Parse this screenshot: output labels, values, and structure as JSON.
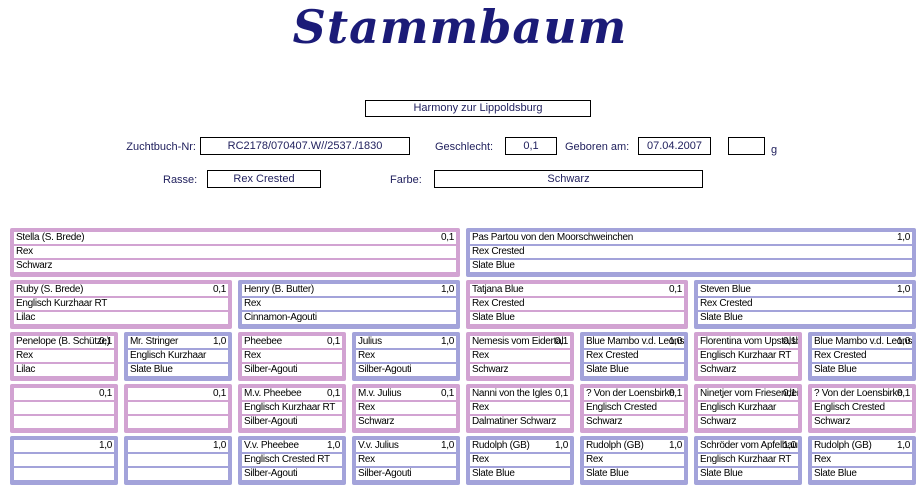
{
  "title": "Stammbaum",
  "animal": {
    "name": "Harmony zur Lippoldsburg",
    "zuchtbuch_label": "Zuchtbuch-Nr:",
    "zuchtbuch_value": "RC2178/070407.W//2537./1830",
    "geschlecht_label": "Geschlecht:",
    "geschlecht_value": "0,1",
    "geboren_label": "Geboren am:",
    "geboren_value": "07.04.2007",
    "weight_value": "",
    "weight_unit": "g",
    "rasse_label": "Rasse:",
    "rasse_value": "Rex Crested",
    "farbe_label": "Farbe:",
    "farbe_value": "Schwarz"
  },
  "colors": {
    "female_box": "#d2a3d2",
    "male_box": "#a3a3da",
    "title_text": "#1b1b78"
  },
  "pedigree": {
    "rows": [
      [
        {
          "name": "Stella (S. Brede)",
          "sex": "0,1",
          "breed": "Rex",
          "color": "Schwarz",
          "gender": "female"
        },
        {
          "name": "Pas Partou von den Moorschweinchen",
          "sex": "1,0",
          "breed": "Rex Crested",
          "color": "Slate Blue",
          "gender": "male"
        }
      ],
      [
        {
          "name": "Ruby (S. Brede)",
          "sex": "0,1",
          "breed": "Englisch Kurzhaar RT",
          "color": "Lilac",
          "gender": "female"
        },
        {
          "name": "Henry (B. Butter)",
          "sex": "1,0",
          "breed": "Rex",
          "color": "Cinnamon-Agouti",
          "gender": "male"
        },
        {
          "name": "Tatjana Blue",
          "sex": "0,1",
          "breed": "Rex Crested",
          "color": "Slate Blue",
          "gender": "female"
        },
        {
          "name": "Steven Blue",
          "sex": "1,0",
          "breed": "Rex Crested",
          "color": "Slate Blue",
          "gender": "male"
        }
      ],
      [
        {
          "name": "Penelope (B. Schütze)",
          "sex": "0,1",
          "breed": "Rex",
          "color": "Lilac",
          "gender": "female"
        },
        {
          "name": "Mr. Stringer",
          "sex": "1,0",
          "breed": "Englisch Kurzhaar",
          "color": "Slate Blue",
          "gender": "male"
        },
        {
          "name": "Pheebee",
          "sex": "0,1",
          "breed": "Rex",
          "color": "Silber-Agouti",
          "gender": "female"
        },
        {
          "name": "Julius",
          "sex": "1,0",
          "breed": "Rex",
          "color": "Silber-Agouti",
          "gender": "male"
        },
        {
          "name": "Nemesis vom Eidertal",
          "sex": "0,1",
          "breed": "Rex",
          "color": "Schwarz",
          "gender": "female"
        },
        {
          "name": "Blue Mambo v.d. Leons",
          "sex": "1,0",
          "breed": "Rex Crested",
          "color": "Slate Blue",
          "gender": "male"
        },
        {
          "name": "Florentina vom Upstalsb",
          "sex": "0,1",
          "breed": "Englisch Kurzhaar RT",
          "color": "Schwarz",
          "gender": "female"
        },
        {
          "name": "Blue Mambo v.d. Leons",
          "sex": "1,0",
          "breed": "Rex Crested",
          "color": "Slate Blue",
          "gender": "male"
        }
      ],
      [
        {
          "name": "",
          "sex": "0,1",
          "breed": "",
          "color": "",
          "gender": "female"
        },
        {
          "name": "",
          "sex": "0,1",
          "breed": "",
          "color": "",
          "gender": "female"
        },
        {
          "name": "M.v. Pheebee",
          "sex": "0,1",
          "breed": "Englisch Kurzhaar RT",
          "color": "Silber-Agouti",
          "gender": "female"
        },
        {
          "name": "M.v. Julius",
          "sex": "0,1",
          "breed": "Rex",
          "color": "Schwarz",
          "gender": "female"
        },
        {
          "name": "Nanni von the Igles",
          "sex": "0,1",
          "breed": "Rex",
          "color": "Dalmatiner Schwarz",
          "gender": "female"
        },
        {
          "name": "? Von der Loensbirke",
          "sex": "0,1",
          "breed": "Englisch Crested",
          "color": "Schwarz",
          "gender": "female"
        },
        {
          "name": "Ninetjer vom Friesendei",
          "sex": "0,1",
          "breed": "Englisch Kurzhaar",
          "color": "Schwarz",
          "gender": "female"
        },
        {
          "name": "? Von der Loensbirke",
          "sex": "0,1",
          "breed": "Englisch Crested",
          "color": "Schwarz",
          "gender": "female"
        }
      ],
      [
        {
          "name": "",
          "sex": "1,0",
          "breed": "",
          "color": "",
          "gender": "male"
        },
        {
          "name": "",
          "sex": "1,0",
          "breed": "",
          "color": "",
          "gender": "male"
        },
        {
          "name": "V.v. Pheebee",
          "sex": "1,0",
          "breed": "Englisch Crested RT",
          "color": "Silber-Agouti",
          "gender": "male"
        },
        {
          "name": "V.v. Julius",
          "sex": "1,0",
          "breed": "Rex",
          "color": "Silber-Agouti",
          "gender": "male"
        },
        {
          "name": "Rudolph (GB)",
          "sex": "1,0",
          "breed": "Rex",
          "color": "Slate Blue",
          "gender": "male"
        },
        {
          "name": "Rudolph (GB)",
          "sex": "1,0",
          "breed": "Rex",
          "color": "Slate Blue",
          "gender": "male"
        },
        {
          "name": "Schröder vom Apfelbau",
          "sex": "1,0",
          "breed": "Englisch Kurzhaar RT",
          "color": "Slate Blue",
          "gender": "male"
        },
        {
          "name": "Rudolph (GB)",
          "sex": "1,0",
          "breed": "Rex",
          "color": "Slate Blue",
          "gender": "male"
        }
      ]
    ]
  }
}
